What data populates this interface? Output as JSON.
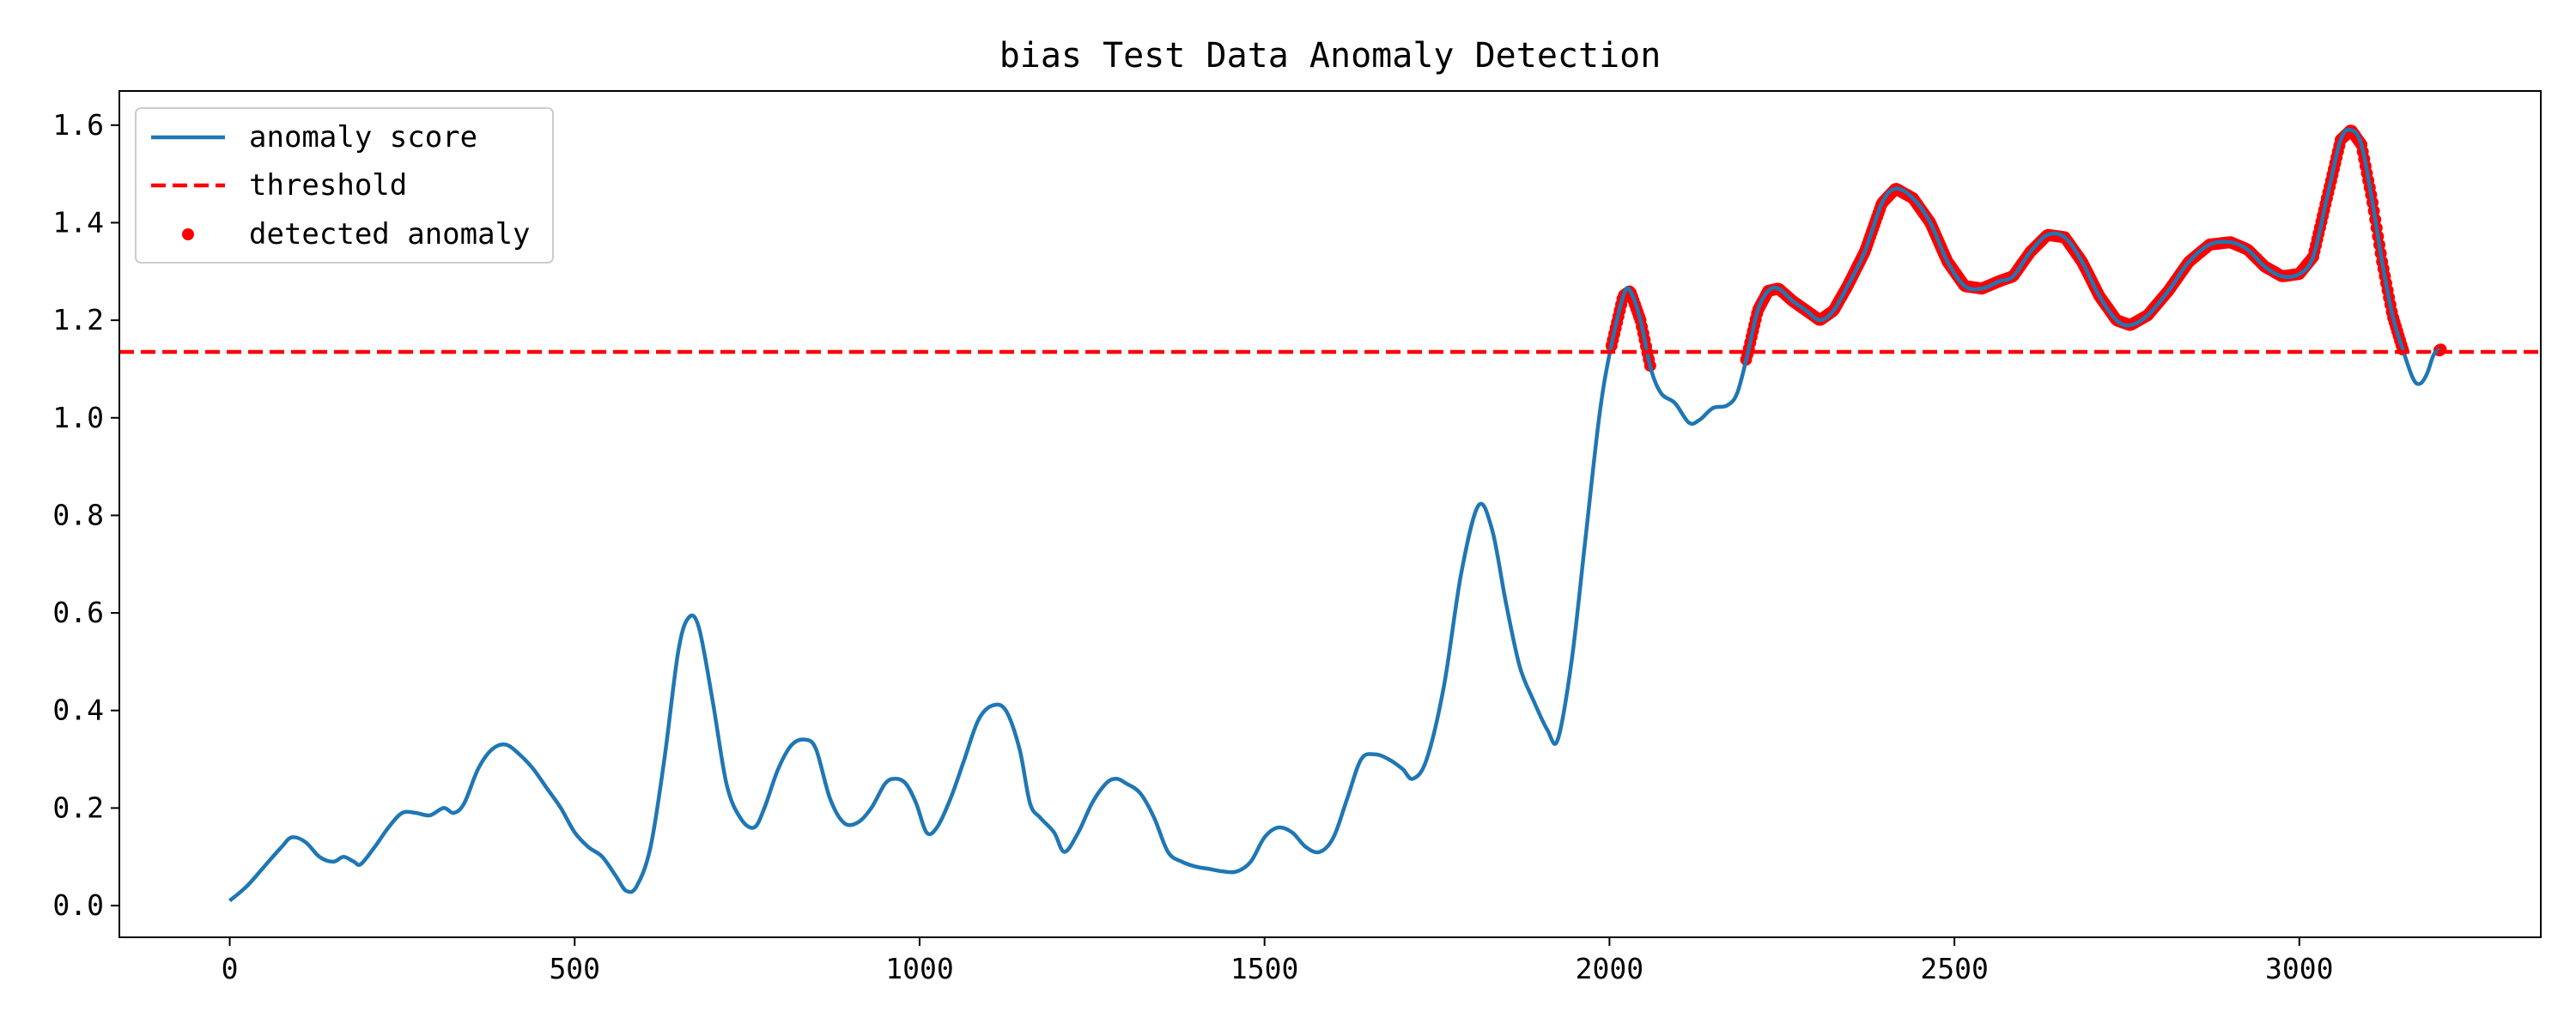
{
  "chart_data": {
    "type": "line",
    "title": "bias Test Data Anomaly Detection",
    "xlabel": "",
    "ylabel": "",
    "xlim": [
      -160,
      3350
    ],
    "ylim": [
      -0.065,
      1.67
    ],
    "xticks": [
      0,
      500,
      1000,
      1500,
      2000,
      2500,
      3000
    ],
    "yticks": [
      0.0,
      0.2,
      0.4,
      0.6,
      0.8,
      1.0,
      1.2,
      1.4,
      1.6
    ],
    "xtick_labels": [
      "0",
      "500",
      "1000",
      "1500",
      "2000",
      "2500",
      "3000"
    ],
    "ytick_labels": [
      "0.0",
      "0.2",
      "0.4",
      "0.6",
      "0.8",
      "1.0",
      "1.2",
      "1.4",
      "1.6"
    ],
    "grid": false,
    "legend_position": "top-left",
    "threshold": 1.135,
    "series": [
      {
        "name": "anomaly score",
        "style": "line",
        "color": "#1f77b4",
        "points": [
          [
            0,
            0.01
          ],
          [
            25,
            0.04
          ],
          [
            50,
            0.08
          ],
          [
            75,
            0.12
          ],
          [
            90,
            0.14
          ],
          [
            110,
            0.13
          ],
          [
            130,
            0.1
          ],
          [
            150,
            0.09
          ],
          [
            165,
            0.1
          ],
          [
            180,
            0.09
          ],
          [
            190,
            0.085
          ],
          [
            210,
            0.12
          ],
          [
            230,
            0.16
          ],
          [
            250,
            0.19
          ],
          [
            270,
            0.19
          ],
          [
            290,
            0.185
          ],
          [
            310,
            0.2
          ],
          [
            325,
            0.19
          ],
          [
            340,
            0.21
          ],
          [
            360,
            0.28
          ],
          [
            380,
            0.32
          ],
          [
            400,
            0.33
          ],
          [
            420,
            0.31
          ],
          [
            440,
            0.28
          ],
          [
            460,
            0.24
          ],
          [
            480,
            0.2
          ],
          [
            500,
            0.15
          ],
          [
            520,
            0.12
          ],
          [
            540,
            0.1
          ],
          [
            560,
            0.06
          ],
          [
            575,
            0.03
          ],
          [
            590,
            0.04
          ],
          [
            610,
            0.12
          ],
          [
            630,
            0.3
          ],
          [
            650,
            0.52
          ],
          [
            665,
            0.59
          ],
          [
            680,
            0.57
          ],
          [
            700,
            0.42
          ],
          [
            720,
            0.25
          ],
          [
            740,
            0.18
          ],
          [
            760,
            0.16
          ],
          [
            775,
            0.2
          ],
          [
            795,
            0.28
          ],
          [
            815,
            0.33
          ],
          [
            835,
            0.34
          ],
          [
            850,
            0.32
          ],
          [
            870,
            0.22
          ],
          [
            890,
            0.17
          ],
          [
            910,
            0.17
          ],
          [
            930,
            0.2
          ],
          [
            950,
            0.25
          ],
          [
            965,
            0.26
          ],
          [
            980,
            0.25
          ],
          [
            995,
            0.21
          ],
          [
            1010,
            0.15
          ],
          [
            1025,
            0.16
          ],
          [
            1045,
            0.22
          ],
          [
            1065,
            0.3
          ],
          [
            1085,
            0.38
          ],
          [
            1105,
            0.41
          ],
          [
            1125,
            0.4
          ],
          [
            1145,
            0.32
          ],
          [
            1160,
            0.21
          ],
          [
            1175,
            0.18
          ],
          [
            1195,
            0.15
          ],
          [
            1210,
            0.11
          ],
          [
            1230,
            0.15
          ],
          [
            1250,
            0.21
          ],
          [
            1270,
            0.25
          ],
          [
            1285,
            0.26
          ],
          [
            1300,
            0.25
          ],
          [
            1320,
            0.23
          ],
          [
            1340,
            0.18
          ],
          [
            1360,
            0.11
          ],
          [
            1380,
            0.09
          ],
          [
            1400,
            0.08
          ],
          [
            1420,
            0.075
          ],
          [
            1440,
            0.07
          ],
          [
            1460,
            0.07
          ],
          [
            1480,
            0.09
          ],
          [
            1500,
            0.14
          ],
          [
            1520,
            0.16
          ],
          [
            1540,
            0.15
          ],
          [
            1560,
            0.12
          ],
          [
            1580,
            0.11
          ],
          [
            1600,
            0.14
          ],
          [
            1620,
            0.22
          ],
          [
            1640,
            0.3
          ],
          [
            1660,
            0.31
          ],
          [
            1680,
            0.3
          ],
          [
            1700,
            0.28
          ],
          [
            1715,
            0.26
          ],
          [
            1735,
            0.3
          ],
          [
            1760,
            0.45
          ],
          [
            1785,
            0.68
          ],
          [
            1810,
            0.82
          ],
          [
            1830,
            0.77
          ],
          [
            1850,
            0.62
          ],
          [
            1870,
            0.49
          ],
          [
            1890,
            0.42
          ],
          [
            1910,
            0.36
          ],
          [
            1925,
            0.34
          ],
          [
            1945,
            0.5
          ],
          [
            1965,
            0.75
          ],
          [
            1985,
            1.0
          ],
          [
            2000,
            1.13
          ],
          [
            2020,
            1.25
          ],
          [
            2030,
            1.26
          ],
          [
            2045,
            1.2
          ],
          [
            2060,
            1.1
          ],
          [
            2075,
            1.05
          ],
          [
            2095,
            1.03
          ],
          [
            2115,
            0.99
          ],
          [
            2130,
            0.995
          ],
          [
            2150,
            1.02
          ],
          [
            2170,
            1.025
          ],
          [
            2185,
            1.05
          ],
          [
            2200,
            1.13
          ],
          [
            2215,
            1.22
          ],
          [
            2230,
            1.26
          ],
          [
            2245,
            1.265
          ],
          [
            2265,
            1.24
          ],
          [
            2285,
            1.22
          ],
          [
            2305,
            1.2
          ],
          [
            2325,
            1.22
          ],
          [
            2345,
            1.27
          ],
          [
            2370,
            1.34
          ],
          [
            2395,
            1.44
          ],
          [
            2415,
            1.47
          ],
          [
            2440,
            1.45
          ],
          [
            2465,
            1.4
          ],
          [
            2490,
            1.32
          ],
          [
            2515,
            1.27
          ],
          [
            2540,
            1.265
          ],
          [
            2565,
            1.28
          ],
          [
            2585,
            1.29
          ],
          [
            2610,
            1.34
          ],
          [
            2635,
            1.375
          ],
          [
            2660,
            1.37
          ],
          [
            2685,
            1.32
          ],
          [
            2710,
            1.25
          ],
          [
            2735,
            1.2
          ],
          [
            2755,
            1.19
          ],
          [
            2780,
            1.21
          ],
          [
            2810,
            1.26
          ],
          [
            2840,
            1.32
          ],
          [
            2870,
            1.355
          ],
          [
            2900,
            1.36
          ],
          [
            2925,
            1.345
          ],
          [
            2950,
            1.31
          ],
          [
            2975,
            1.29
          ],
          [
            3000,
            1.295
          ],
          [
            3020,
            1.33
          ],
          [
            3040,
            1.45
          ],
          [
            3060,
            1.57
          ],
          [
            3075,
            1.59
          ],
          [
            3090,
            1.56
          ],
          [
            3105,
            1.45
          ],
          [
            3120,
            1.32
          ],
          [
            3135,
            1.21
          ],
          [
            3150,
            1.14
          ],
          [
            3165,
            1.08
          ],
          [
            3175,
            1.07
          ],
          [
            3185,
            1.09
          ],
          [
            3195,
            1.13
          ],
          [
            3205,
            1.14
          ]
        ]
      },
      {
        "name": "threshold",
        "style": "dashed",
        "color": "#ff0000",
        "y": 1.135
      },
      {
        "name": "detected anomaly",
        "style": "scatter",
        "color": "#ff0000",
        "ranges": [
          [
            2003,
            2060
          ],
          [
            2198,
            3150
          ],
          [
            3203,
            3205
          ]
        ]
      }
    ]
  }
}
